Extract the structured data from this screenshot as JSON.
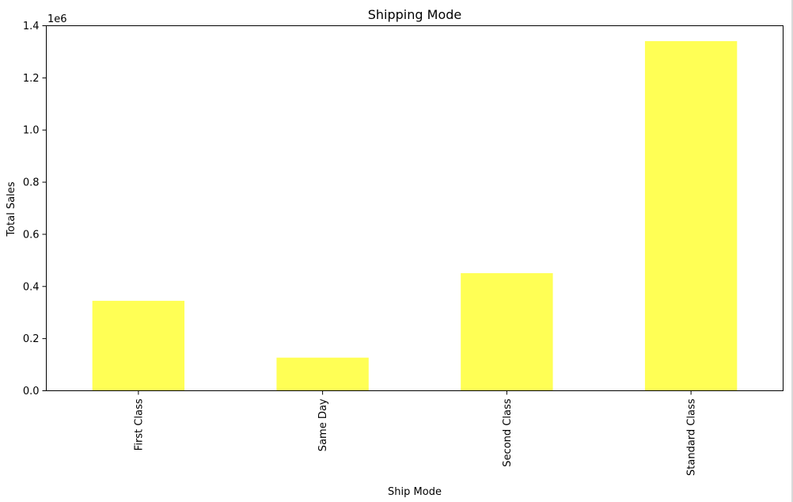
{
  "chart_data": {
    "type": "bar",
    "title": "Shipping Mode",
    "xlabel": "Ship Mode",
    "ylabel": "Total Sales",
    "y_offset_text": "1e6",
    "categories": [
      "First Class",
      "Same Day",
      "Second Class",
      "Standard Class"
    ],
    "values": [
      345000,
      127000,
      451000,
      1341000
    ],
    "ylim": [
      0,
      1400000
    ],
    "yticks": [
      0,
      200000,
      400000,
      600000,
      800000,
      1000000,
      1200000,
      1400000
    ],
    "ytick_labels": [
      "0.0",
      "0.2",
      "0.4",
      "0.6",
      "0.8",
      "1.0",
      "1.2",
      "1.4"
    ],
    "bar_color": "#ffff55",
    "grid": false,
    "legend": "none"
  }
}
